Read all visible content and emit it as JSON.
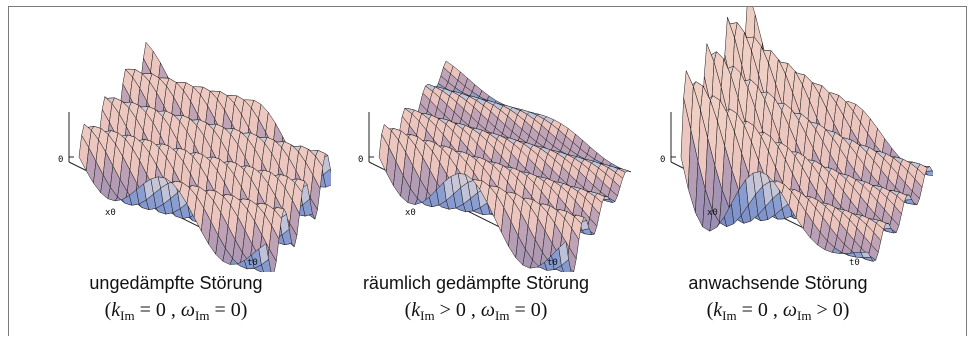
{
  "panels": [
    {
      "id": "undamped",
      "caption": "ungedämpfte Störung",
      "k_symbol": "k",
      "k_sub": "Im",
      "k_rel": "=",
      "k_val": "0",
      "w_symbol": "ω",
      "w_sub": "Im",
      "w_rel": "=",
      "w_val": "0",
      "axis_zero": "0",
      "axis_x": "x0",
      "axis_t": "t0"
    },
    {
      "id": "spatially-damped",
      "caption": "räumlich gedämpfte Störung",
      "k_symbol": "k",
      "k_sub": "Im",
      "k_rel": ">",
      "k_val": "0",
      "w_symbol": "ω",
      "w_sub": "Im",
      "w_rel": "=",
      "w_val": "0",
      "axis_zero": "0",
      "axis_x": "x0",
      "axis_t": "t0"
    },
    {
      "id": "growing",
      "caption": "anwachsende Störung",
      "k_symbol": "k",
      "k_sub": "Im",
      "k_rel": "=",
      "k_val": "0",
      "w_symbol": "ω",
      "w_sub": "Im",
      "w_rel": ">",
      "w_val": "0",
      "axis_zero": "0",
      "axis_x": "x0",
      "axis_t": "t0"
    }
  ],
  "colors": {
    "crest": "#f2d8c8",
    "trough": "#5d6fb0",
    "pink": "#e7b7b8",
    "blue": "#9fb4e2",
    "mesh": "#1a1a1a"
  }
}
